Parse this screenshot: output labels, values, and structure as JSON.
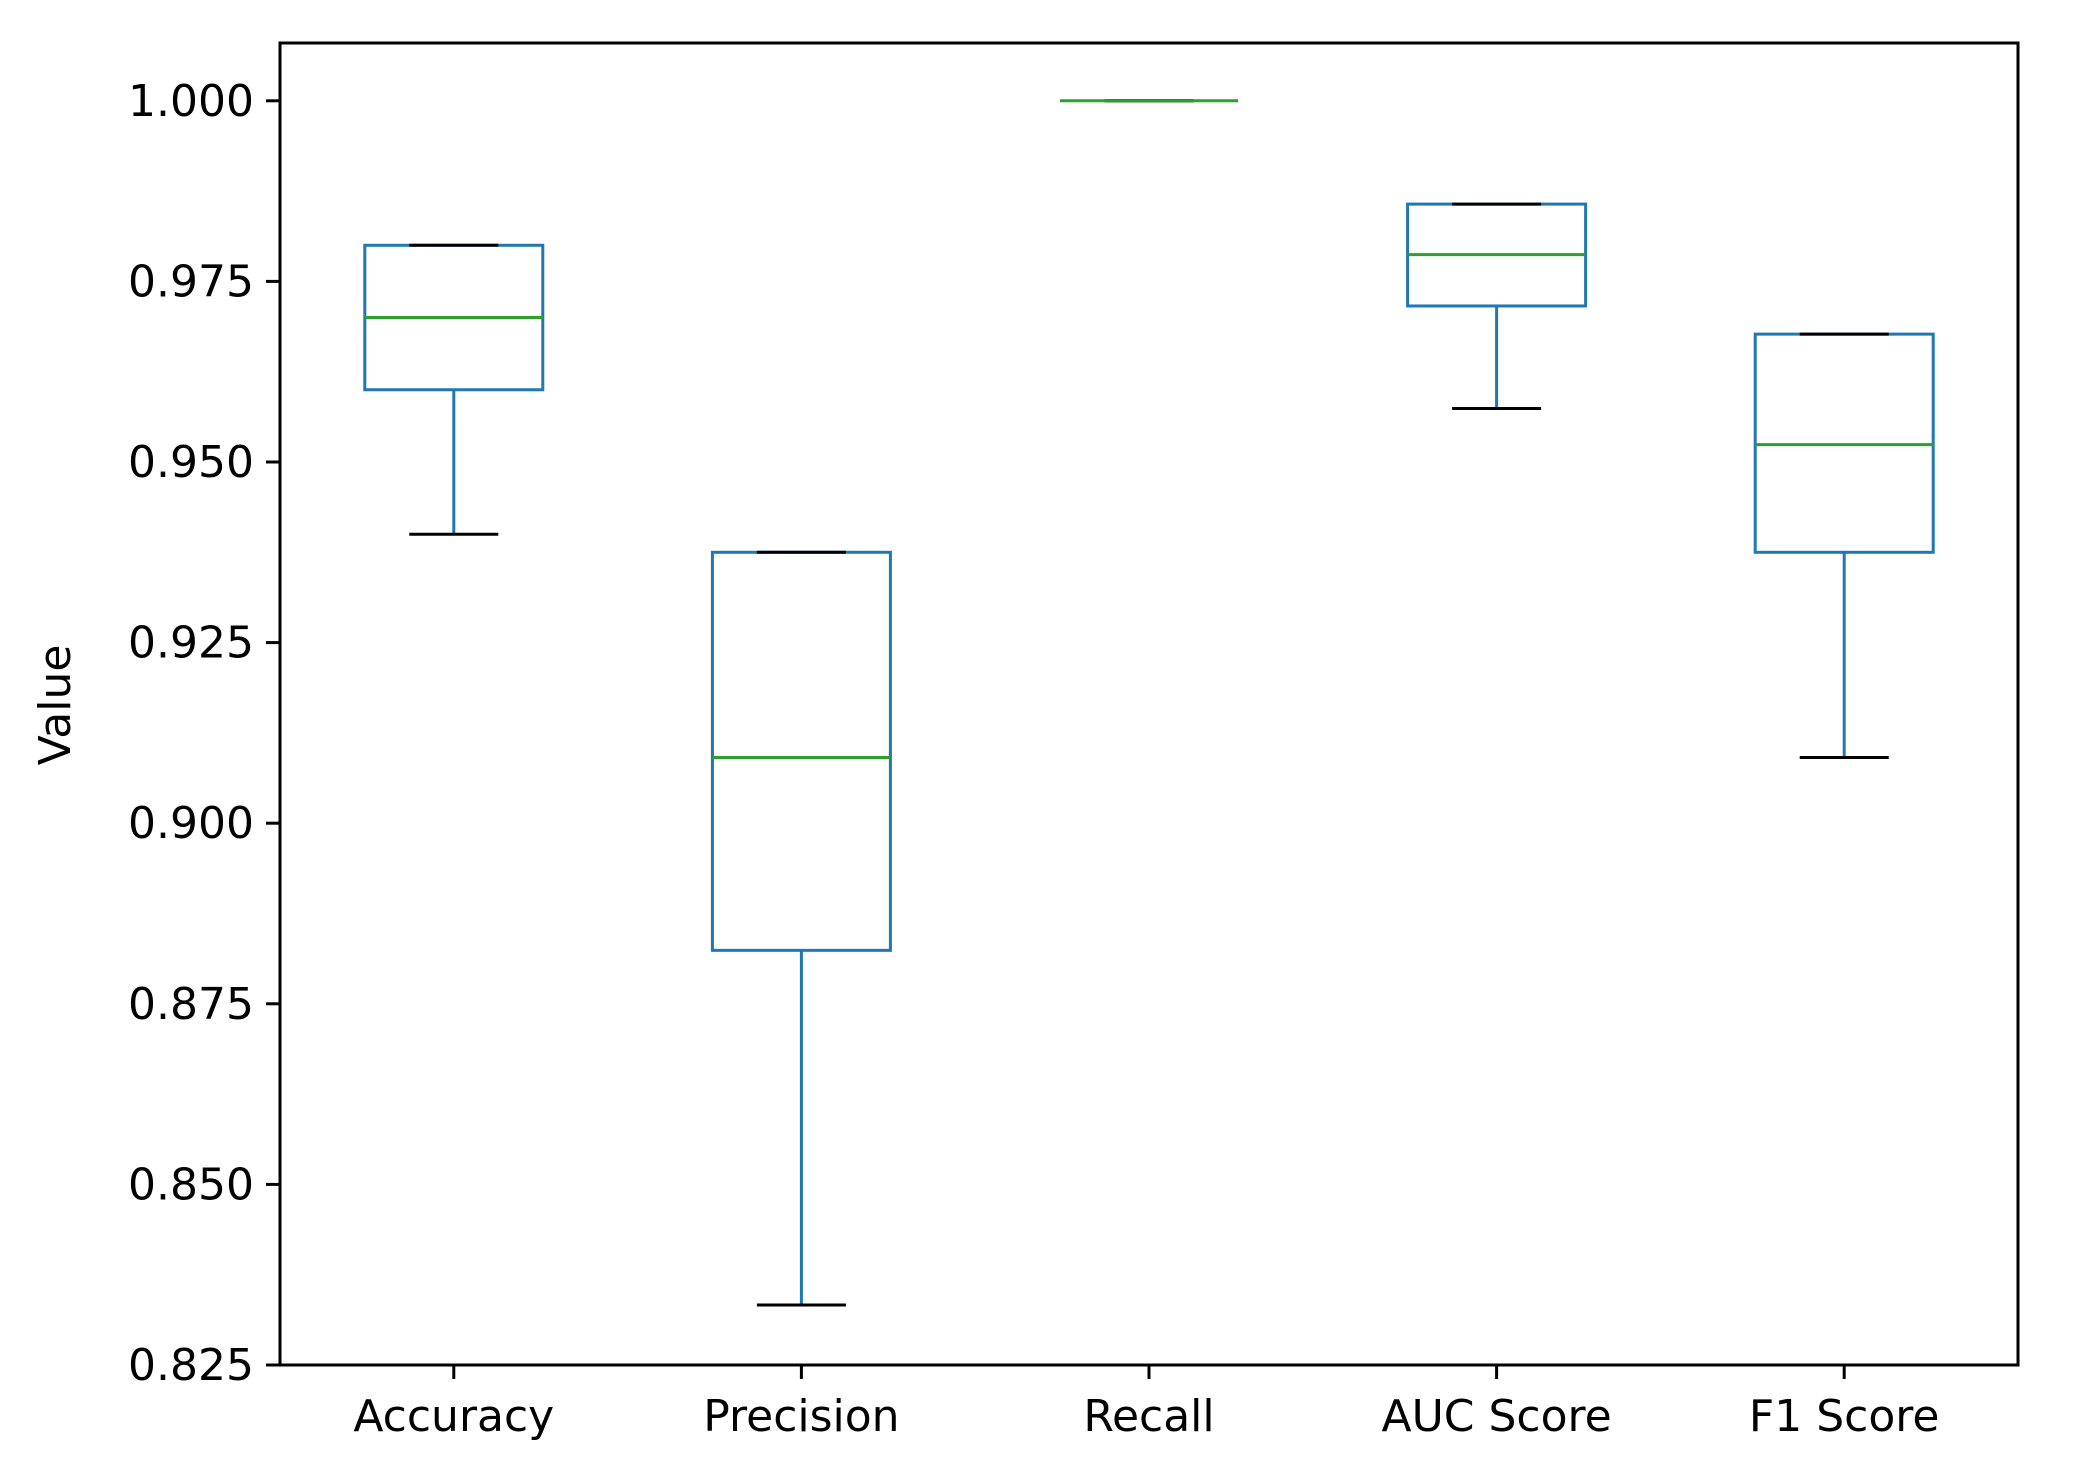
{
  "chart_data": {
    "type": "box",
    "title": "",
    "xlabel": "",
    "ylabel": "Value",
    "ylim": [
      0.825,
      1.008
    ],
    "yticks": [
      "0.825",
      "0.850",
      "0.875",
      "0.900",
      "0.925",
      "0.950",
      "0.975",
      "1.000"
    ],
    "grid": false,
    "categories": [
      "Accuracy",
      "Precision",
      "Recall",
      "AUC Score",
      "F1 Score"
    ],
    "boxes": [
      {
        "name": "Accuracy",
        "whisker_low": 0.94,
        "q1": 0.96,
        "median": 0.97,
        "q3": 0.98,
        "whisker_high": 0.98
      },
      {
        "name": "Precision",
        "whisker_low": 0.8333,
        "q1": 0.8824,
        "median": 0.9091,
        "q3": 0.9375,
        "whisker_high": 0.9375
      },
      {
        "name": "Recall",
        "whisker_low": 1.0,
        "q1": 1.0,
        "median": 1.0,
        "q3": 1.0,
        "whisker_high": 1.0
      },
      {
        "name": "AUC Score",
        "whisker_low": 0.9574,
        "q1": 0.9716,
        "median": 0.9787,
        "q3": 0.9857,
        "whisker_high": 0.9857
      },
      {
        "name": "F1 Score",
        "whisker_low": 0.9091,
        "q1": 0.9375,
        "median": 0.9524,
        "q3": 0.9677,
        "whisker_high": 0.9677
      }
    ],
    "colors": {
      "box": "#1f77b4",
      "median": "#2ca02c",
      "cap": "#000000",
      "axis": "#000000"
    }
  }
}
